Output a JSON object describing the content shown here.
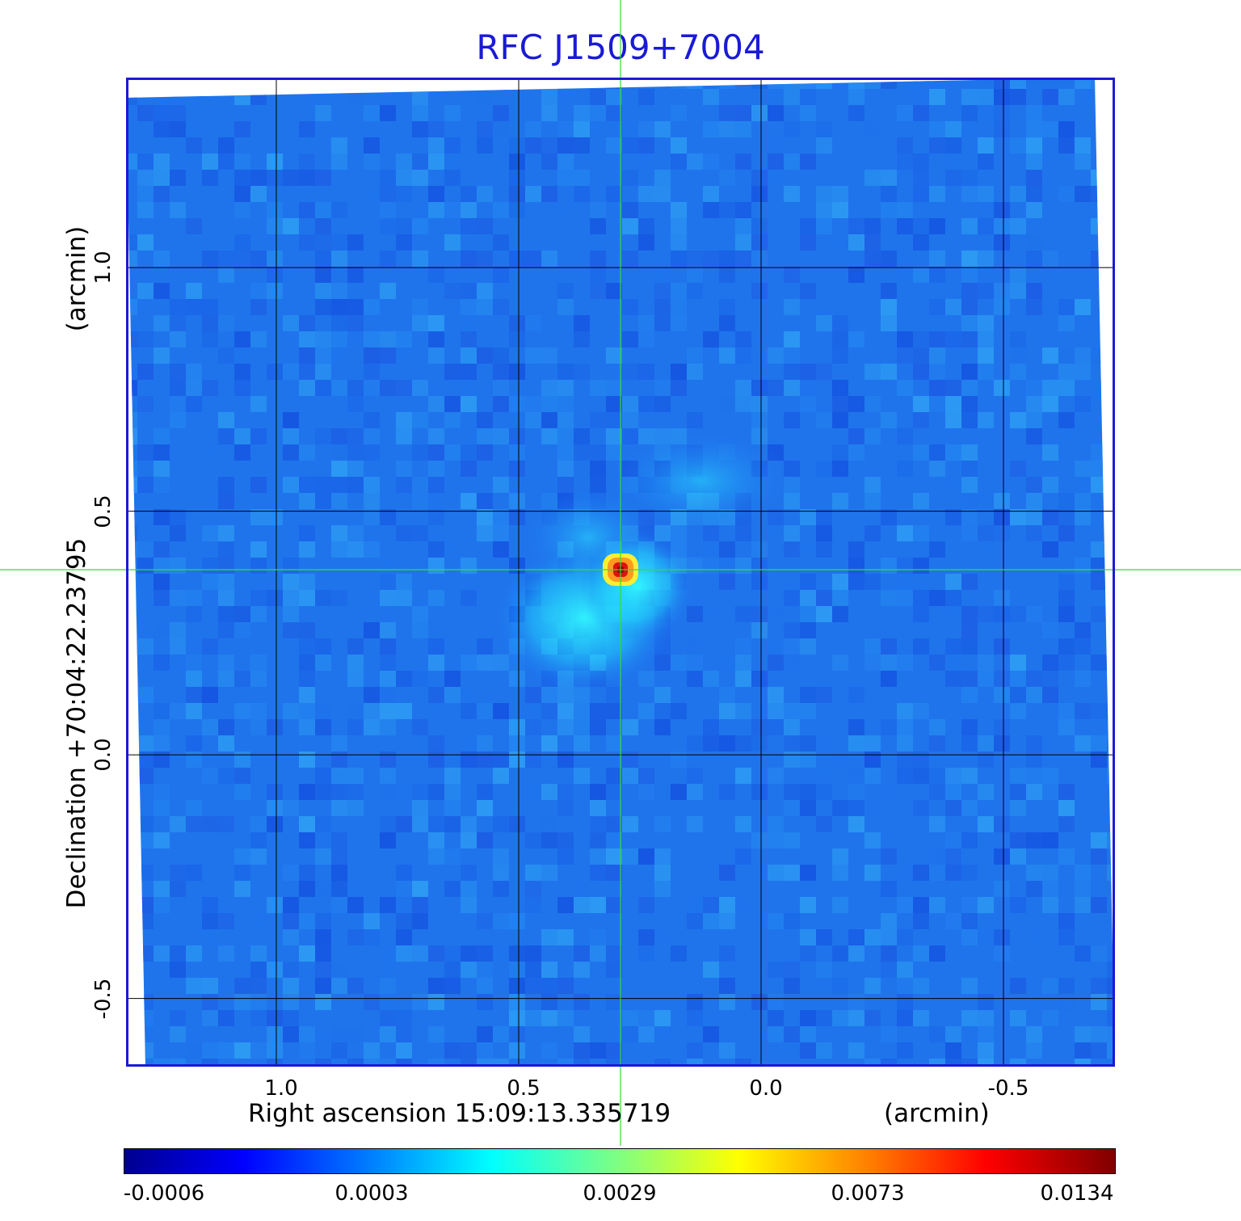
{
  "chart_data": {
    "type": "heatmap",
    "title": "RFC J1509+7004",
    "xlabel": "Right ascension  15:09:13.335719",
    "xunit": "(arcmin)",
    "ylabel": "Declination  +70:04:22.23795",
    "yunit": "(arcmin)",
    "x_ticks": [
      "1.0",
      "0.5",
      "0.0",
      "-0.5"
    ],
    "y_ticks": [
      "1.0",
      "0.5",
      "0.0",
      "-0.5"
    ],
    "x_tick_values": [
      1.0,
      0.5,
      0.0,
      -0.5
    ],
    "y_tick_values": [
      1.0,
      0.5,
      0.0,
      -0.5
    ],
    "xlim": [
      1.31,
      -0.73
    ],
    "ylim": [
      -0.64,
      1.39
    ],
    "grid": true,
    "source": {
      "x": 0.29,
      "y": 0.38,
      "peak": 0.0134
    },
    "colorbar": {
      "ticks": [
        "-0.0006",
        "0.0003",
        "0.0029",
        "0.0073",
        "0.0134"
      ],
      "colormap": "jet"
    },
    "colors": {
      "title": "#1a1ad6",
      "frame": "#1a1ad6",
      "crosshair": "#33dd33",
      "grid": "#000000"
    }
  }
}
